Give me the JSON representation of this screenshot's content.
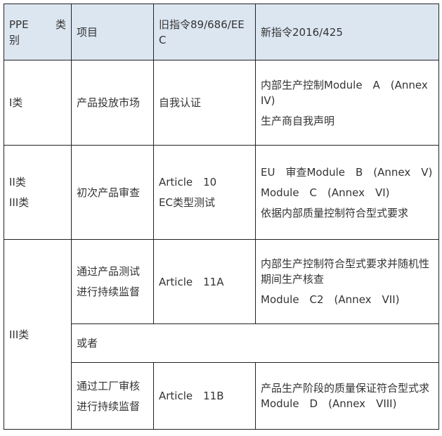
{
  "header": {
    "category_line1a": "PPE",
    "category_line1b": "类",
    "category_line2": "别",
    "item": "项目",
    "old_line1": "旧指令89/686/EE",
    "old_line2": "C",
    "new": "新指令2016/425"
  },
  "rows": [
    {
      "category": "I类",
      "item": "产品投放市场",
      "old": [
        "自我认证"
      ],
      "new": [
        "内部生产控制Module　A　(Annex IV)",
        "生产商自我声明"
      ]
    },
    {
      "category": [
        "II类",
        "III类"
      ],
      "item": "初次产品审查",
      "old": [
        "Article　10",
        "EC类型测试"
      ],
      "new": [
        "EU　审查Module　B　(Annex　V)",
        "Module　C　(Annex　VI)",
        "依据内部质量控制符合型式要求"
      ]
    },
    {
      "category": "III类",
      "item": [
        "通过产品测试",
        "进行持续监督"
      ],
      "old": [
        "Article　11A"
      ],
      "new": [
        "内部生产控制符合型式要求并随机性期间生产核查",
        "Module　C2　(Annex　VII)"
      ]
    },
    {
      "item": "或者"
    },
    {
      "item": [
        "通过工厂审核",
        "进行持续监督"
      ],
      "old": [
        "Article　11B"
      ],
      "new": [
        "产品生产阶段的质量保证符合型式求Module　D　(Annex　VIII)"
      ]
    }
  ]
}
